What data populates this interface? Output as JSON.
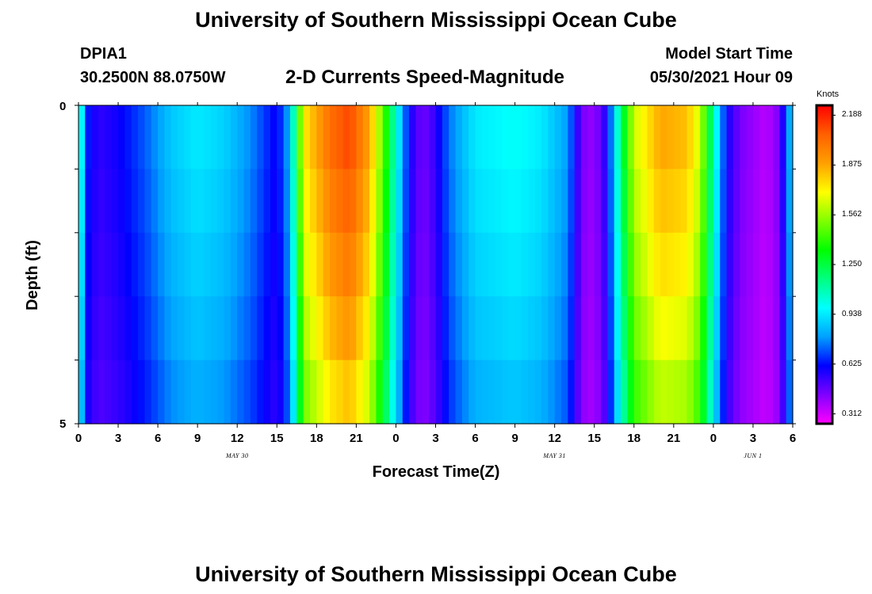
{
  "header": {
    "title": "University of Southern Mississippi Ocean Cube",
    "station_id": "DPIA1",
    "coordinates": "30.2500N  88.0750W",
    "product": "2-D Currents Speed-Magnitude",
    "model_start_label": "Model Start Time",
    "model_start_value": "05/30/2021 Hour 09"
  },
  "footer": {
    "title": "University of Southern Mississippi Ocean Cube"
  },
  "colorbar": {
    "unit": "Knots",
    "ticks": [
      "2.188",
      "1.875",
      "1.562",
      "1.250",
      "0.938",
      "0.625",
      "0.312"
    ],
    "colors": [
      "#ff00ff",
      "#8000ff",
      "#0000ff",
      "#00a0ff",
      "#00ffff",
      "#00ff80",
      "#00ff00",
      "#80ff00",
      "#ffff00",
      "#ffa000",
      "#ff6000",
      "#ff0000"
    ]
  },
  "chart_data": {
    "type": "heatmap",
    "title": "2-D Currents Speed-Magnitude",
    "xlabel": "Forecast Time(Z)",
    "ylabel": "Depth (ft)",
    "x_ticks": [
      "0",
      "3",
      "6",
      "9",
      "12",
      "15",
      "18",
      "21",
      "0",
      "3",
      "6",
      "9",
      "12",
      "15",
      "18",
      "21",
      "0",
      "3",
      "6"
    ],
    "y_ticks": [
      "0",
      "5"
    ],
    "ylim": [
      0,
      5
    ],
    "xlim_hours": [
      0,
      54
    ],
    "date_labels": [
      {
        "text": "MAY  30",
        "hour": 12
      },
      {
        "text": "MAY  31",
        "hour": 36
      },
      {
        "text": "JUN  1",
        "hour": 51
      }
    ],
    "vmin": 0.25,
    "vmax": 2.25,
    "depth_levels": [
      0,
      1,
      2,
      3,
      4,
      5
    ],
    "speed_profile_knots": [
      [
        0,
        1.15
      ],
      [
        0.7,
        0.65
      ],
      [
        1.5,
        0.55
      ],
      [
        3,
        0.6
      ],
      [
        5,
        0.72
      ],
      [
        7,
        0.88
      ],
      [
        9,
        0.95
      ],
      [
        11,
        0.9
      ],
      [
        13,
        0.78
      ],
      [
        15,
        0.6
      ],
      [
        16,
        0.85
      ],
      [
        17,
        1.75
      ],
      [
        19,
        2.05
      ],
      [
        20.5,
        2.15
      ],
      [
        22,
        1.9
      ],
      [
        23,
        1.5
      ],
      [
        24,
        1.05
      ],
      [
        25,
        0.6
      ],
      [
        26,
        0.45
      ],
      [
        27,
        0.55
      ],
      [
        28,
        0.75
      ],
      [
        30,
        0.95
      ],
      [
        33,
        1.0
      ],
      [
        35,
        0.95
      ],
      [
        37,
        0.8
      ],
      [
        38,
        0.45
      ],
      [
        39,
        0.4
      ],
      [
        40,
        0.6
      ],
      [
        41,
        1.2
      ],
      [
        42,
        1.65
      ],
      [
        44,
        1.9
      ],
      [
        46,
        1.85
      ],
      [
        47,
        1.65
      ],
      [
        48,
        1.1
      ],
      [
        49,
        0.6
      ],
      [
        50,
        0.45
      ],
      [
        52,
        0.35
      ],
      [
        53,
        0.45
      ],
      [
        54,
        0.95
      ]
    ],
    "depth_factor": [
      1.0,
      0.97,
      0.94,
      0.9,
      0.86,
      0.8
    ]
  }
}
